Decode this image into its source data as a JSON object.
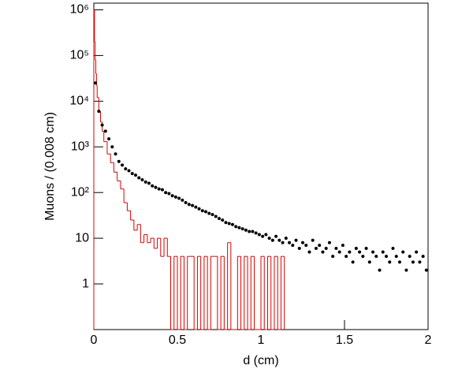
{
  "chart_data": {
    "type": "scatter",
    "x_label": "d (cm)",
    "y_label": "Muons / (0.008 cm)",
    "log_y": true,
    "xlim": [
      0,
      2
    ],
    "ylim": [
      0.1,
      1400000
    ],
    "xticks": [
      0,
      0.5,
      1,
      1.5,
      2
    ],
    "yticks": [
      1,
      10,
      {
        "value": 100,
        "label": "10²"
      },
      {
        "value": 1000,
        "label": "10³"
      },
      {
        "value": 10000,
        "label": "10⁴"
      },
      {
        "value": 100000,
        "label": "10⁵"
      },
      {
        "value": 1000000,
        "label": "10⁶"
      }
    ],
    "data": {
      "color": "#000000",
      "x": [
        0.01,
        0.03,
        0.05,
        0.07,
        0.09,
        0.11,
        0.13,
        0.15,
        0.17,
        0.19,
        0.21,
        0.23,
        0.25,
        0.27,
        0.29,
        0.31,
        0.33,
        0.35,
        0.37,
        0.39,
        0.41,
        0.43,
        0.45,
        0.47,
        0.49,
        0.51,
        0.53,
        0.55,
        0.57,
        0.59,
        0.61,
        0.63,
        0.65,
        0.67,
        0.69,
        0.71,
        0.73,
        0.75,
        0.77,
        0.79,
        0.81,
        0.83,
        0.85,
        0.87,
        0.89,
        0.91,
        0.93,
        0.95,
        0.97,
        0.99,
        1.01,
        1.03,
        1.05,
        1.07,
        1.09,
        1.11,
        1.13,
        1.15,
        1.17,
        1.19,
        1.21,
        1.23,
        1.25,
        1.27,
        1.29,
        1.31,
        1.33,
        1.35,
        1.37,
        1.39,
        1.41,
        1.43,
        1.45,
        1.47,
        1.49,
        1.51,
        1.53,
        1.55,
        1.57,
        1.59,
        1.61,
        1.63,
        1.65,
        1.67,
        1.69,
        1.71,
        1.73,
        1.75,
        1.77,
        1.79,
        1.81,
        1.83,
        1.85,
        1.87,
        1.89,
        1.91,
        1.93,
        1.95,
        1.97,
        1.99
      ],
      "values": [
        25000,
        6000,
        3000,
        2200,
        1500,
        1000,
        700,
        480,
        400,
        330,
        300,
        260,
        240,
        210,
        190,
        170,
        160,
        140,
        130,
        120,
        115,
        100,
        95,
        85,
        80,
        75,
        68,
        60,
        55,
        52,
        48,
        44,
        40,
        38,
        35,
        33,
        30,
        27,
        25,
        22,
        21,
        20,
        18,
        17,
        16,
        15,
        14,
        14,
        13,
        12,
        11,
        12,
        10,
        9,
        11,
        9,
        8,
        10,
        8,
        7,
        9,
        6,
        8,
        7,
        5,
        9,
        6,
        7,
        5,
        6,
        8,
        4,
        6,
        5,
        7,
        4,
        5,
        3,
        6,
        5,
        4,
        6,
        3,
        5,
        4,
        2,
        5,
        4,
        3,
        6,
        4,
        3,
        5,
        2,
        4,
        3,
        5,
        3,
        4,
        2
      ]
    },
    "histogram": {
      "color": "#dd0000",
      "bins": [
        0,
        0.004,
        0.008,
        0.012,
        0.016,
        0.02,
        0.03,
        0.04,
        0.05,
        0.06,
        0.08,
        0.1,
        0.12,
        0.14,
        0.16,
        0.18,
        0.2,
        0.22,
        0.24,
        0.26,
        0.28,
        0.3,
        0.32,
        0.34,
        0.36,
        0.38,
        0.4,
        0.42,
        0.44,
        0.46,
        0.48,
        0.5,
        0.52,
        0.54,
        0.56,
        0.58,
        0.6,
        0.62,
        0.64,
        0.66,
        0.68,
        0.7,
        0.72,
        0.74,
        0.76,
        0.78,
        0.8,
        0.82,
        0.84,
        0.86,
        0.88,
        0.9,
        0.92,
        0.94,
        0.96,
        0.98,
        1.0,
        1.02,
        1.04,
        1.06,
        1.08,
        1.1,
        1.12,
        1.14
      ],
      "counts": [
        1000000,
        200000,
        80000,
        40000,
        22000,
        12000,
        6000,
        3500,
        2200,
        1300,
        700,
        450,
        280,
        180,
        120,
        60,
        40,
        25,
        15,
        20,
        8,
        12,
        8,
        10,
        6,
        10,
        4,
        10,
        4,
        0,
        4,
        0,
        4,
        0,
        4,
        4,
        0,
        4,
        0,
        4,
        0,
        4,
        4,
        0,
        4,
        0,
        8,
        0,
        0,
        4,
        0,
        4,
        0,
        4,
        0,
        0,
        4,
        0,
        4,
        0,
        4,
        0,
        4
      ]
    }
  }
}
